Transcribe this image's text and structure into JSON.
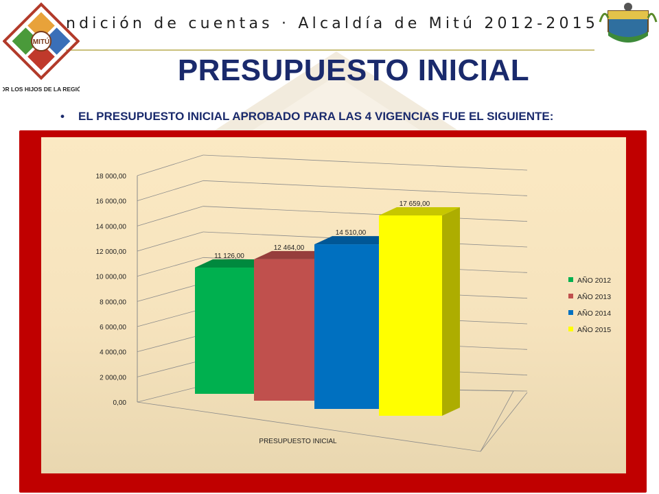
{
  "header": {
    "title": "ndición de cuentas · Alcaldía de Mitú 2012-2015",
    "logo_left_caption": "POR LOS HIJOS DE LA REGIÓN",
    "logo_left_label": "MITÚ"
  },
  "page": {
    "title": "PRESUPUESTO INICIAL",
    "bullet": "EL PRESUPUESTO INICIAL APROBADO PARA LAS 4 VIGENCIAS FUE EL SIGUIENTE:",
    "frame_color": "#c00000"
  },
  "chart_data": {
    "type": "bar",
    "categories": [
      "PRESUPUESTO INICIAL"
    ],
    "xlabel": "PRESUPUESTO INICIAL",
    "ylim": [
      0,
      18000
    ],
    "yticks": [
      "0,00",
      "2 000,00",
      "4 000,00",
      "6 000,00",
      "8 000,00",
      "10 000,00",
      "12 000,00",
      "14 000,00",
      "16 000,00",
      "18 000,00"
    ],
    "grid": true,
    "legend": "right",
    "series": [
      {
        "name": "AÑO 2012",
        "value": 11126,
        "label": "11 126,00",
        "color": "#00b04f"
      },
      {
        "name": "AÑO 2013",
        "value": 12464,
        "label": "12 464,00",
        "color": "#c0504d"
      },
      {
        "name": "AÑO 2014",
        "value": 14510,
        "label": "14 510,00",
        "color": "#0070c0"
      },
      {
        "name": "AÑO 2015",
        "value": 17659,
        "label": "17 659,00",
        "color": "#ffff00"
      }
    ]
  }
}
